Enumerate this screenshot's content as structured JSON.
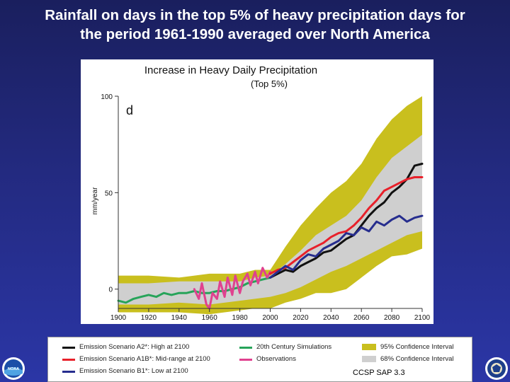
{
  "slide": {
    "title_line1": "Rainfall on days in the top 5% of heavy precipitation days for",
    "title_line2": "the period 1961-1990 averaged over North America",
    "credit": "CCSP SAP 3.3"
  },
  "colors": {
    "background": "#232a80",
    "ci95": "#c9bf1e",
    "ci68": "#cfcfcf",
    "a2": "#111111",
    "a1b": "#e8202a",
    "b1": "#262d8e",
    "sim20c": "#27a45a",
    "obs": "#e0418f"
  },
  "chart_data": {
    "type": "line",
    "title": "Increase in Heavy Daily Precipitation",
    "subtitle": "(Top 5%)",
    "panel_label": "d",
    "ylabel": "mm/year",
    "xlabel": "",
    "xlim": [
      1900,
      2100
    ],
    "ylim": [
      -10,
      100
    ],
    "xticks": [
      1900,
      1920,
      1940,
      1960,
      1980,
      2000,
      2020,
      2040,
      2060,
      2080,
      2100
    ],
    "yticks": [
      0,
      50,
      100
    ],
    "grid": false,
    "bands": [
      {
        "name": "95% Confidence Interval",
        "color": "#c9bf1e",
        "x": [
          1900,
          1920,
          1940,
          1960,
          1980,
          1990,
          2000,
          2010,
          2020,
          2030,
          2040,
          2050,
          2060,
          2070,
          2080,
          2090,
          2100
        ],
        "upper": [
          7,
          7,
          6,
          8,
          8,
          10,
          10,
          22,
          33,
          42,
          50,
          56,
          65,
          78,
          88,
          95,
          100
        ],
        "lower": [
          -12,
          -12,
          -12,
          -13,
          -11,
          -10,
          -10,
          -7,
          -5,
          -2,
          -2,
          0,
          6,
          12,
          17,
          18,
          21
        ]
      },
      {
        "name": "68% Confidence Interval",
        "color": "#cfcfcf",
        "x": [
          1900,
          1920,
          1940,
          1960,
          1980,
          1990,
          2000,
          2010,
          2020,
          2030,
          2040,
          2050,
          2060,
          2070,
          2080,
          2090,
          2100
        ],
        "upper": [
          3,
          3,
          4,
          4,
          4,
          6,
          7,
          13,
          20,
          28,
          33,
          38,
          46,
          58,
          68,
          74,
          80
        ],
        "lower": [
          -8,
          -8,
          -7,
          -8,
          -6,
          -5,
          -4,
          -2,
          1,
          5,
          9,
          12,
          16,
          20,
          24,
          28,
          30
        ]
      }
    ],
    "series": [
      {
        "name": "20th Century Simulations",
        "color": "#27a45a",
        "x": [
          1900,
          1905,
          1910,
          1915,
          1920,
          1925,
          1930,
          1935,
          1940,
          1945,
          1950,
          1955,
          1960,
          1965,
          1970,
          1975,
          1980,
          1985,
          1990,
          1995,
          2000
        ],
        "y": [
          -6,
          -7,
          -5,
          -4,
          -3,
          -4,
          -2,
          -3,
          -2,
          -2,
          -1,
          -2,
          -2,
          -1,
          -1,
          0,
          1,
          3,
          4,
          5,
          6
        ]
      },
      {
        "name": "Observations",
        "color": "#e0418f",
        "x": [
          1950,
          1953,
          1955,
          1958,
          1960,
          1962,
          1965,
          1967,
          1970,
          1972,
          1975,
          1977,
          1980,
          1982,
          1985,
          1987,
          1990,
          1992,
          1995,
          1998,
          2000
        ],
        "y": [
          0,
          -5,
          3,
          -8,
          -10,
          -2,
          -5,
          4,
          -4,
          6,
          -3,
          7,
          -2,
          4,
          8,
          2,
          9,
          3,
          11,
          6,
          9
        ]
      },
      {
        "name": "Emission Scenario A2*: High at 2100",
        "color": "#111111",
        "x": [
          2000,
          2005,
          2010,
          2015,
          2020,
          2025,
          2030,
          2035,
          2040,
          2045,
          2050,
          2055,
          2060,
          2065,
          2070,
          2075,
          2080,
          2085,
          2090,
          2095,
          2100
        ],
        "y": [
          6,
          8,
          10,
          9,
          12,
          14,
          16,
          19,
          20,
          23,
          26,
          28,
          33,
          38,
          42,
          45,
          50,
          53,
          57,
          64,
          65
        ]
      },
      {
        "name": "Emission Scenario A1B*: Mid-range at 2100",
        "color": "#e8202a",
        "x": [
          2000,
          2005,
          2010,
          2015,
          2020,
          2025,
          2030,
          2035,
          2040,
          2045,
          2050,
          2055,
          2060,
          2065,
          2070,
          2075,
          2080,
          2085,
          2090,
          2095,
          2100
        ],
        "y": [
          8,
          10,
          11,
          14,
          17,
          20,
          22,
          24,
          27,
          29,
          30,
          33,
          37,
          42,
          46,
          51,
          53,
          55,
          57,
          58,
          58
        ]
      },
      {
        "name": "Emission Scenario B1*: Low at 2100",
        "color": "#262d8e",
        "x": [
          2000,
          2005,
          2010,
          2015,
          2020,
          2025,
          2030,
          2035,
          2040,
          2045,
          2050,
          2055,
          2060,
          2065,
          2070,
          2075,
          2080,
          2085,
          2090,
          2095,
          2100
        ],
        "y": [
          6,
          9,
          12,
          10,
          15,
          18,
          17,
          21,
          23,
          25,
          29,
          28,
          32,
          30,
          35,
          33,
          36,
          38,
          35,
          37,
          38
        ]
      }
    ]
  },
  "legend": {
    "a2": "Emission Scenario A2*: High at 2100",
    "a1b": "Emission Scenario A1B*: Mid-range at 2100",
    "b1": "Emission Scenario B1*: Low at 2100",
    "sim20c": "20th Century Simulations",
    "obs": "Observations",
    "ci95": "95% Confidence Interval",
    "ci68": "68% Confidence Interval"
  },
  "logos": {
    "left": {
      "icon": "noaa-logo",
      "text": "NOAA"
    },
    "right": {
      "icon": "dept-of-commerce-seal"
    }
  }
}
